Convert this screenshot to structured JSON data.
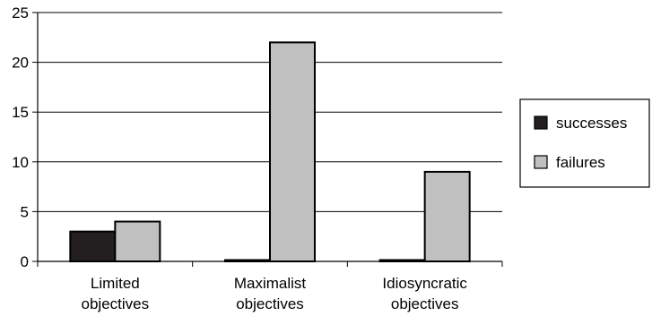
{
  "chart_data": {
    "type": "bar",
    "categories": [
      [
        "Limited",
        "objectives"
      ],
      [
        "Maximalist",
        "objectives"
      ],
      [
        "Idiosyncratic",
        "objectives"
      ]
    ],
    "series": [
      {
        "name": "successes",
        "values": [
          3,
          0,
          0
        ],
        "color": "#231f20"
      },
      {
        "name": "failures",
        "values": [
          4,
          22,
          9
        ],
        "color": "#c0c0c0"
      }
    ],
    "y_ticks": [
      0,
      5,
      10,
      15,
      20,
      25
    ],
    "ylim": [
      0,
      25
    ],
    "grid": "horizontal",
    "legend_position": "right",
    "title": "",
    "xlabel": "",
    "ylabel": ""
  }
}
